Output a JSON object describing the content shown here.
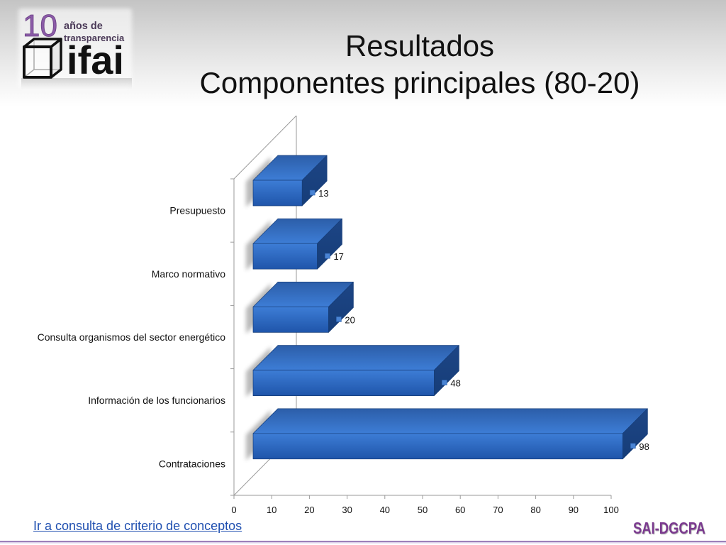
{
  "logo_ifai": {
    "number": "10",
    "line1": "años de",
    "line2": "transparencia",
    "brand": "ifai"
  },
  "slide": {
    "title_line1": "Resultados",
    "title_line2": "Componentes principales (80-20)"
  },
  "chart_data": {
    "type": "bar",
    "orientation": "horizontal",
    "style": "3d",
    "categories": [
      "Presupuesto",
      "Marco normativo",
      "Consulta organismos del sector energético",
      "Información de los funcionarios",
      "Contrataciones"
    ],
    "values": [
      13,
      17,
      20,
      48,
      98
    ],
    "xlim": [
      0,
      100
    ],
    "xticks": [
      0,
      10,
      20,
      30,
      40,
      50,
      60,
      70,
      80,
      90,
      100
    ],
    "grid": false,
    "data_labels": true
  },
  "footer": {
    "link_text": "Ir a consulta de criterio de conceptos",
    "logo_text": "SAI-DGCPA"
  },
  "colors": {
    "title_text": "#111111",
    "link": "#1f4fb0",
    "sai_logo": "#7b3a8f",
    "logo_purple": "#8b5ba7",
    "bar_front_light": "#3d7dd6",
    "bar_front_dark": "#1f55aa",
    "bar_top": "#2c5ea9",
    "bar_side": "#1d4585",
    "bar_edge": "#163d78",
    "label_marker": "#4a84d4",
    "axis_line": "#9a9a9a"
  }
}
